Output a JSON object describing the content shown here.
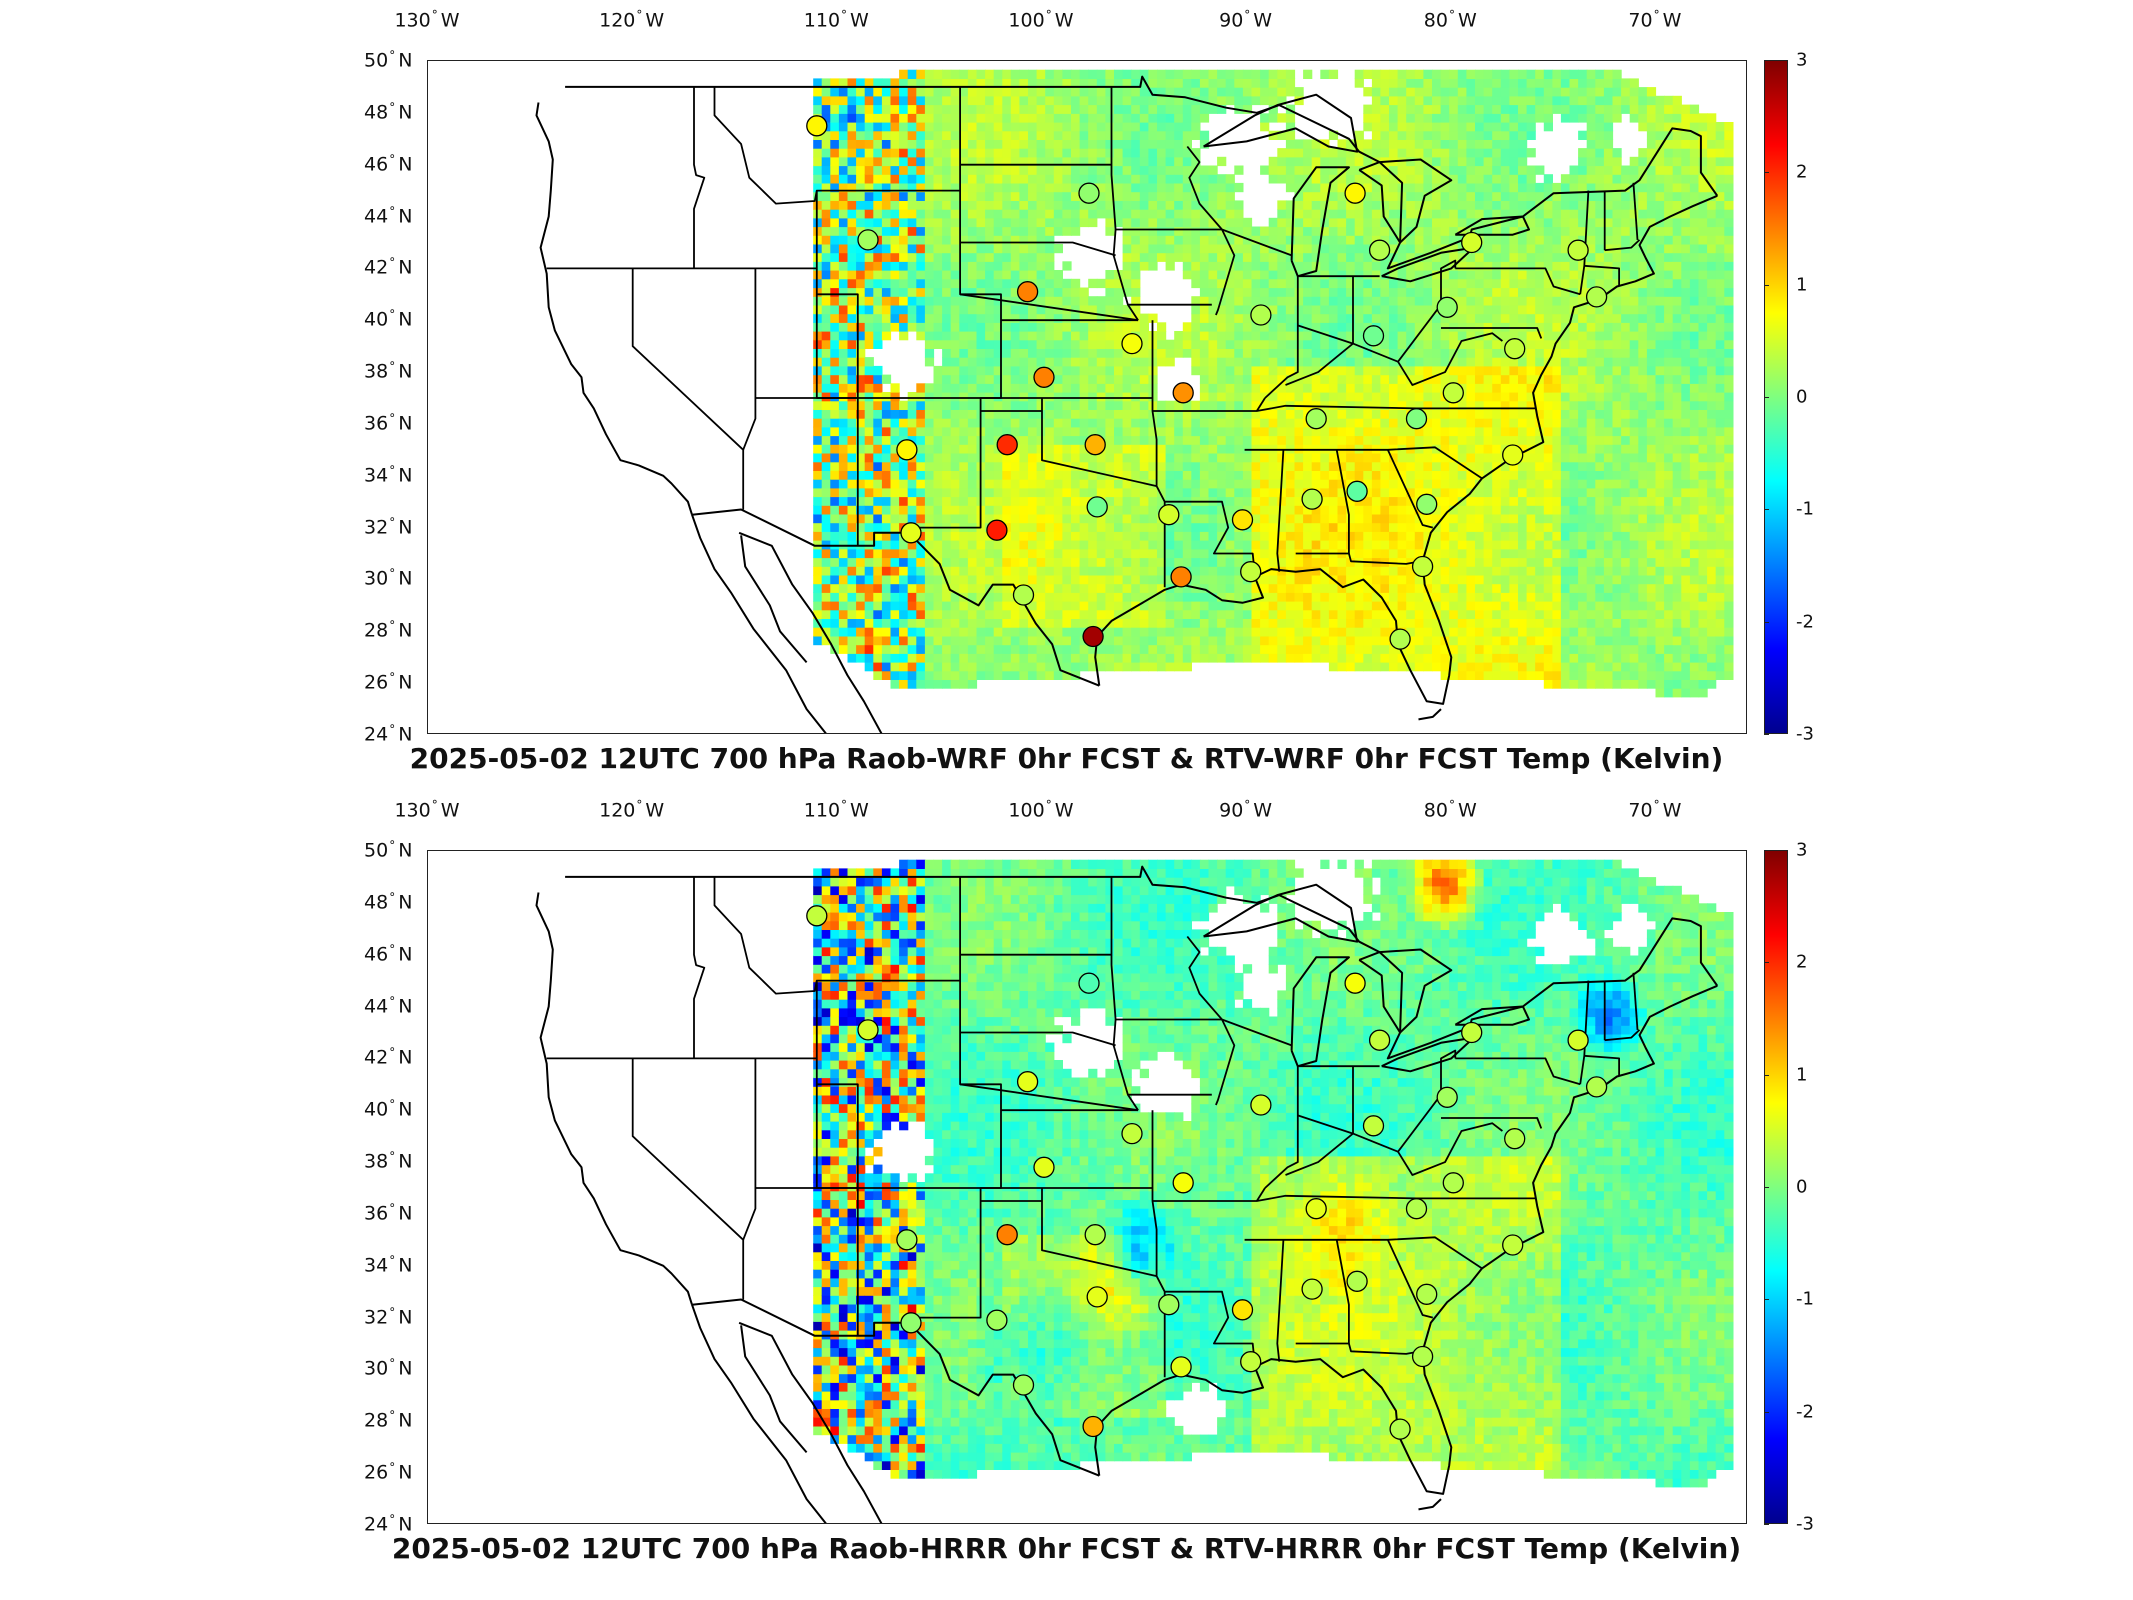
{
  "panels": [
    {
      "id": "top",
      "title": "2025-05-02 12UTC 700 hPa Raob-WRF 0hr FCST & RTV-WRF 0hr FCST Temp (Kelvin)",
      "variant": "wrf"
    },
    {
      "id": "bottom",
      "title": "2025-05-02 12UTC 700 hPa Raob-HRRR 0hr FCST & RTV-HRRR 0hr FCST Temp (Kelvin)",
      "variant": "hrrr"
    }
  ],
  "longitude_labels": [
    {
      "value": "130",
      "hemi": "W"
    },
    {
      "value": "120",
      "hemi": "W"
    },
    {
      "value": "110",
      "hemi": "W"
    },
    {
      "value": "100",
      "hemi": "W"
    },
    {
      "value": "90",
      "hemi": "W"
    },
    {
      "value": "80",
      "hemi": "W"
    },
    {
      "value": "70",
      "hemi": "W"
    }
  ],
  "latitude_labels": [
    {
      "value": "50",
      "hemi": "N"
    },
    {
      "value": "48",
      "hemi": "N"
    },
    {
      "value": "46",
      "hemi": "N"
    },
    {
      "value": "44",
      "hemi": "N"
    },
    {
      "value": "42",
      "hemi": "N"
    },
    {
      "value": "40",
      "hemi": "N"
    },
    {
      "value": "38",
      "hemi": "N"
    },
    {
      "value": "36",
      "hemi": "N"
    },
    {
      "value": "34",
      "hemi": "N"
    },
    {
      "value": "32",
      "hemi": "N"
    },
    {
      "value": "30",
      "hemi": "N"
    },
    {
      "value": "28",
      "hemi": "N"
    },
    {
      "value": "26",
      "hemi": "N"
    },
    {
      "value": "24",
      "hemi": "N"
    }
  ],
  "colorbar": {
    "ticks": [
      "3",
      "2",
      "1",
      "0",
      "-1",
      "-2",
      "-3"
    ],
    "range": [
      -3,
      3
    ],
    "colors": [
      "#00008f",
      "#0000ff",
      "#00ffff",
      "#7fff7f",
      "#ffff00",
      "#ff0000",
      "#800000"
    ]
  },
  "stations": [
    {
      "lon": -111.0,
      "lat": 47.5,
      "wrf": 0.8,
      "hrrr": 0.4
    },
    {
      "lon": -108.5,
      "lat": 43.1,
      "wrf": 0.2,
      "hrrr": 0.5
    },
    {
      "lon": -100.7,
      "lat": 41.1,
      "wrf": 1.5,
      "hrrr": 0.6
    },
    {
      "lon": -97.7,
      "lat": 44.9,
      "wrf": 0.1,
      "hrrr": -0.3
    },
    {
      "lon": -99.9,
      "lat": 37.8,
      "wrf": 1.5,
      "hrrr": 0.6
    },
    {
      "lon": -95.6,
      "lat": 39.1,
      "wrf": 0.7,
      "hrrr": 0.4
    },
    {
      "lon": -93.1,
      "lat": 37.2,
      "wrf": 1.4,
      "hrrr": 0.7
    },
    {
      "lon": -101.7,
      "lat": 35.2,
      "wrf": 2.0,
      "hrrr": 1.5
    },
    {
      "lon": -97.4,
      "lat": 35.2,
      "wrf": 1.2,
      "hrrr": 0.3
    },
    {
      "lon": -106.6,
      "lat": 35.0,
      "wrf": 0.8,
      "hrrr": 0.2
    },
    {
      "lon": -106.4,
      "lat": 31.8,
      "wrf": 0.6,
      "hrrr": 0.1
    },
    {
      "lon": -102.2,
      "lat": 31.9,
      "wrf": 2.1,
      "hrrr": 0.2
    },
    {
      "lon": -97.3,
      "lat": 32.8,
      "wrf": -0.1,
      "hrrr": 0.6
    },
    {
      "lon": -100.9,
      "lat": 29.4,
      "wrf": 0.3,
      "hrrr": 0.2
    },
    {
      "lon": -97.5,
      "lat": 27.8,
      "wrf": 2.8,
      "hrrr": 1.2
    },
    {
      "lon": -93.2,
      "lat": 30.1,
      "wrf": 1.5,
      "hrrr": 0.6
    },
    {
      "lon": -93.8,
      "lat": 32.5,
      "wrf": 0.5,
      "hrrr": 0.2
    },
    {
      "lon": -90.2,
      "lat": 32.3,
      "wrf": 0.9,
      "hrrr": 0.9
    },
    {
      "lon": -89.8,
      "lat": 30.3,
      "wrf": 0.4,
      "hrrr": 0.4
    },
    {
      "lon": -86.8,
      "lat": 33.1,
      "wrf": 0.3,
      "hrrr": 0.4
    },
    {
      "lon": -84.6,
      "lat": 33.4,
      "wrf": -0.2,
      "hrrr": 0.3
    },
    {
      "lon": -86.6,
      "lat": 36.2,
      "wrf": 0.2,
      "hrrr": 0.6
    },
    {
      "lon": -81.7,
      "lat": 36.2,
      "wrf": 0.0,
      "hrrr": 0.3
    },
    {
      "lon": -81.2,
      "lat": 32.9,
      "wrf": 0.1,
      "hrrr": 0.3
    },
    {
      "lon": -82.5,
      "lat": 27.7,
      "wrf": 0.3,
      "hrrr": 0.3
    },
    {
      "lon": -81.4,
      "lat": 30.5,
      "wrf": 0.4,
      "hrrr": 0.3
    },
    {
      "lon": -77.0,
      "lat": 34.8,
      "wrf": 0.6,
      "hrrr": 0.4
    },
    {
      "lon": -79.9,
      "lat": 37.2,
      "wrf": 0.4,
      "hrrr": 0.3
    },
    {
      "lon": -83.8,
      "lat": 39.4,
      "wrf": -0.1,
      "hrrr": 0.4
    },
    {
      "lon": -89.3,
      "lat": 40.2,
      "wrf": 0.3,
      "hrrr": 0.5
    },
    {
      "lon": -80.2,
      "lat": 40.5,
      "wrf": 0.1,
      "hrrr": 0.2
    },
    {
      "lon": -83.5,
      "lat": 42.7,
      "wrf": 0.3,
      "hrrr": 0.4
    },
    {
      "lon": -84.7,
      "lat": 44.9,
      "wrf": 0.8,
      "hrrr": 0.7
    },
    {
      "lon": -79.0,
      "lat": 43.0,
      "wrf": 0.5,
      "hrrr": 0.4
    },
    {
      "lon": -73.8,
      "lat": 42.7,
      "wrf": 0.4,
      "hrrr": 0.5
    },
    {
      "lon": -72.9,
      "lat": 40.9,
      "wrf": 0.3,
      "hrrr": 0.3
    },
    {
      "lon": -76.9,
      "lat": 38.9,
      "wrf": 0.4,
      "hrrr": 0.3
    }
  ]
}
